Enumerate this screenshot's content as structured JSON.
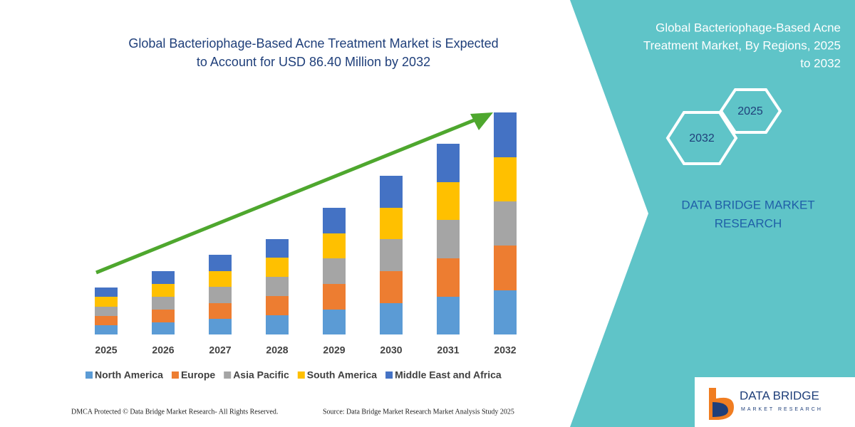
{
  "chart_data": {
    "type": "bar",
    "stacked": true,
    "title_lines": [
      "Global Bacteriophage-Based Acne Treatment Market is Expected",
      "to Account for USD 86.40 Million by 2032"
    ],
    "categories": [
      "2025",
      "2026",
      "2027",
      "2028",
      "2029",
      "2030",
      "2031",
      "2032"
    ],
    "series": [
      {
        "name": "North America",
        "color": "#5b9bd5",
        "values": [
          13,
          17,
          22,
          27,
          35,
          44,
          53,
          62
        ]
      },
      {
        "name": "Europe",
        "color": "#ed7d31",
        "values": [
          13,
          18,
          22,
          27,
          36,
          45,
          54,
          63
        ]
      },
      {
        "name": "Asia Pacific",
        "color": "#a5a5a5",
        "values": [
          13,
          18,
          23,
          27,
          36,
          45,
          54,
          62
        ]
      },
      {
        "name": "South America",
        "color": "#ffc000",
        "values": [
          14,
          18,
          22,
          27,
          35,
          44,
          53,
          62
        ]
      },
      {
        "name": "Middle East and Africa",
        "color": "#4472c4",
        "values": [
          13,
          18,
          23,
          26,
          36,
          45,
          54,
          63
        ]
      }
    ]
  },
  "side_panel": {
    "title_lines": [
      "Global Bacteriophage-Based Acne",
      "Treatment Market, By Regions, 2025",
      "to 2032"
    ],
    "hexagons": [
      "2025",
      "2032"
    ],
    "brand_lines": [
      "DATA BRIDGE MARKET",
      "RESEARCH"
    ]
  },
  "footer": {
    "left": "DMCA Protected © Data Bridge Market Research-  All Rights Reserved.",
    "right": "Source: Data Bridge Market Research  Market Analysis Study 2025"
  },
  "logo": {
    "name": "DATA BRIDGE",
    "tagline": "MARKET RESEARCH"
  }
}
